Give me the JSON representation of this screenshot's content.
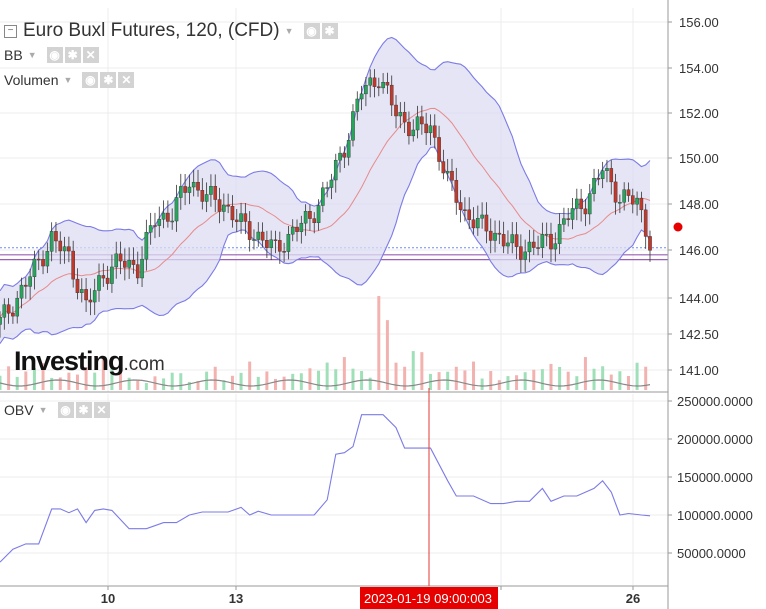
{
  "legend": {
    "main_title": "Euro Buxl Futures, 120, (CFD)",
    "bb_label": "BB",
    "volume_label": "Volumen",
    "obv_label": "OBV"
  },
  "watermark": {
    "brand": "Investing",
    "suffix": ".com"
  },
  "colors": {
    "up": "#26a65b",
    "down": "#c0392b",
    "band_fill": "#dcdcf3",
    "band_line": "#7b7be6",
    "basis": "#e88a8a",
    "obv_line": "#7b7be6",
    "crosshair": "#e53935",
    "last_price_marker": "#e60000",
    "hline_dotted": "#6b8cff",
    "hline_purple": "#9a5fb5"
  },
  "chart_data": [
    {
      "type": "candlestick",
      "panel": "price",
      "title": "Euro Buxl Futures, 120, (CFD)",
      "y_ticks": [
        "156.00",
        "154.00",
        "152.00",
        "150.00",
        "148.00",
        "146.00",
        "144.00",
        "142.50",
        "141.00"
      ],
      "ylim": [
        140.2,
        156.5
      ],
      "x_ticks": [
        "10",
        "13",
        "",
        "26"
      ],
      "indicators": [
        "BB",
        "Volumen"
      ],
      "horizontal_lines": [
        146.1,
        145.8,
        145.6
      ],
      "last_price": 147.0,
      "close_path": [
        {
          "x": 0,
          "c": 143.0
        },
        {
          "x": 4,
          "c": 144.0
        },
        {
          "x": 8,
          "c": 145.2
        },
        {
          "x": 12,
          "c": 146.5
        },
        {
          "x": 16,
          "c": 145.7
        },
        {
          "x": 20,
          "c": 143.6
        },
        {
          "x": 24,
          "c": 145.0
        },
        {
          "x": 28,
          "c": 145.5
        },
        {
          "x": 32,
          "c": 145.3
        },
        {
          "x": 36,
          "c": 147.3
        },
        {
          "x": 40,
          "c": 147.6
        },
        {
          "x": 44,
          "c": 149.0
        },
        {
          "x": 48,
          "c": 148.3
        },
        {
          "x": 52,
          "c": 148.0
        },
        {
          "x": 56,
          "c": 147.1
        },
        {
          "x": 60,
          "c": 146.6
        },
        {
          "x": 64,
          "c": 146.0
        },
        {
          "x": 68,
          "c": 146.8
        },
        {
          "x": 72,
          "c": 147.4
        },
        {
          "x": 76,
          "c": 148.7
        },
        {
          "x": 80,
          "c": 150.5
        },
        {
          "x": 84,
          "c": 153.0
        },
        {
          "x": 88,
          "c": 153.6
        },
        {
          "x": 92,
          "c": 152.0
        },
        {
          "x": 96,
          "c": 151.3
        },
        {
          "x": 100,
          "c": 151.4
        },
        {
          "x": 104,
          "c": 149.0
        },
        {
          "x": 108,
          "c": 147.6
        },
        {
          "x": 112,
          "c": 147.0
        },
        {
          "x": 116,
          "c": 146.6
        },
        {
          "x": 120,
          "c": 146.0
        },
        {
          "x": 124,
          "c": 146.2
        },
        {
          "x": 128,
          "c": 146.4
        },
        {
          "x": 132,
          "c": 147.5
        },
        {
          "x": 136,
          "c": 148.1
        },
        {
          "x": 140,
          "c": 149.5
        },
        {
          "x": 144,
          "c": 148.3
        },
        {
          "x": 148,
          "c": 148.1
        },
        {
          "x": 151,
          "c": 146.4
        }
      ],
      "volume_levels": [
        0.25,
        0.2,
        0.3,
        0.15,
        0.2,
        0.25,
        0.35,
        0.2,
        0.1,
        0.15,
        0.2,
        0.1,
        0.25,
        0.15,
        0.3,
        0.2,
        0.15,
        0.2,
        0.25,
        0.3,
        0.35,
        0.2,
        1.0,
        0.3,
        0.45,
        0.2,
        0.25,
        0.3,
        0.2,
        0.15,
        0.2,
        0.25,
        0.3,
        0.2,
        0.35,
        0.25,
        0.2,
        0.3,
        0.45
      ]
    },
    {
      "type": "line",
      "panel": "indicator",
      "title": "OBV",
      "y_ticks": [
        "250000.0000",
        "200000.0000",
        "150000.0000",
        "100000.0000",
        "50000.0000"
      ],
      "ylim": [
        30000,
        260000
      ],
      "x_ticks": [
        "10",
        "13",
        "",
        "26"
      ],
      "crosshair_label": "2023-01-19 09:00:003",
      "series": [
        {
          "name": "OBV",
          "points": [
            [
              0,
              38000
            ],
            [
              3,
              55000
            ],
            [
              6,
              62000
            ],
            [
              9,
              62000
            ],
            [
              12,
              108000
            ],
            [
              14,
              108000
            ],
            [
              16,
              103000
            ],
            [
              18,
              108000
            ],
            [
              20,
              90000
            ],
            [
              22,
              106000
            ],
            [
              24,
              108000
            ],
            [
              26,
              106000
            ],
            [
              30,
              82000
            ],
            [
              34,
              82000
            ],
            [
              38,
              90000
            ],
            [
              41,
              90000
            ],
            [
              44,
              100000
            ],
            [
              47,
              104000
            ],
            [
              50,
              104000
            ],
            [
              53,
              104000
            ],
            [
              56,
              110000
            ],
            [
              58,
              100000
            ],
            [
              60,
              105000
            ],
            [
              63,
              100000
            ],
            [
              66,
              100000
            ],
            [
              70,
              100000
            ],
            [
              73,
              100000
            ],
            [
              76,
              120000
            ],
            [
              78,
              180000
            ],
            [
              80,
              182000
            ],
            [
              82,
              190000
            ],
            [
              84,
              232000
            ],
            [
              86,
              232000
            ],
            [
              89,
              232000
            ],
            [
              92,
              215000
            ],
            [
              94,
              188000
            ],
            [
              97,
              188000
            ],
            [
              100,
              188000
            ],
            [
              104,
              145000
            ],
            [
              106,
              125000
            ],
            [
              110,
              125000
            ],
            [
              114,
              115000
            ],
            [
              117,
              115000
            ],
            [
              120,
              118000
            ],
            [
              123,
              118000
            ],
            [
              126,
              135000
            ],
            [
              128,
              118000
            ],
            [
              131,
              125000
            ],
            [
              134,
              125000
            ],
            [
              138,
              135000
            ],
            [
              140,
              145000
            ],
            [
              142,
              130000
            ],
            [
              144,
              100000
            ],
            [
              146,
              102000
            ],
            [
              149,
              100000
            ],
            [
              151,
              99000
            ]
          ]
        }
      ]
    }
  ]
}
